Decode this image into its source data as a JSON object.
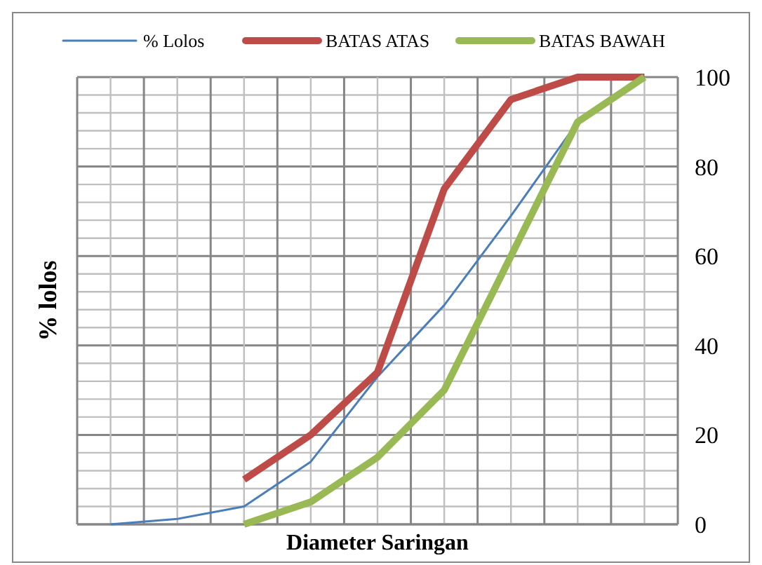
{
  "chart_data": {
    "type": "line",
    "xlabel": "Diameter Saringan",
    "ylabel": "% lolos",
    "categories": [
      null,
      null,
      null,
      null,
      null,
      null,
      null,
      null,
      null
    ],
    "series": [
      {
        "name": "% Lolos",
        "color": "#4a7ebb",
        "values": [
          0,
          1.2,
          4,
          14,
          33,
          49,
          69,
          90,
          100
        ]
      },
      {
        "name": "BATAS ATAS",
        "color": "#be4b48",
        "values": [
          null,
          null,
          10,
          20,
          34,
          75,
          95,
          100,
          100
        ]
      },
      {
        "name": "BATAS BAWAH",
        "color": "#98b954",
        "values": [
          null,
          null,
          0,
          5,
          15,
          30,
          60,
          90,
          100
        ]
      }
    ],
    "ylim": [
      0,
      100
    ],
    "yticks": [
      0,
      {
        "value": 4,
        "label": null
      },
      {
        "value": 8,
        "label": null
      },
      {
        "value": 12,
        "label": null
      },
      {
        "value": 16,
        "label": null
      },
      20,
      {
        "value": 24,
        "label": null
      },
      {
        "value": 28,
        "label": null
      },
      {
        "value": 32,
        "label": null
      },
      {
        "value": 36,
        "label": null
      },
      40,
      {
        "value": 44,
        "label": null
      },
      {
        "value": 48,
        "label": null
      },
      {
        "value": 52,
        "label": null
      },
      {
        "value": 56,
        "label": null
      },
      60,
      {
        "value": 64,
        "label": null
      },
      {
        "value": 68,
        "label": null
      },
      {
        "value": 72,
        "label": null
      },
      {
        "value": 76,
        "label": null
      },
      80,
      {
        "value": 84,
        "label": null
      },
      {
        "value": 88,
        "label": null
      },
      {
        "value": 92,
        "label": null
      },
      {
        "value": 96,
        "label": null
      },
      100
    ],
    "grid": true,
    "legend": "top",
    "tick_labels": "y",
    "marker": "none",
    "line_style": "solid"
  }
}
